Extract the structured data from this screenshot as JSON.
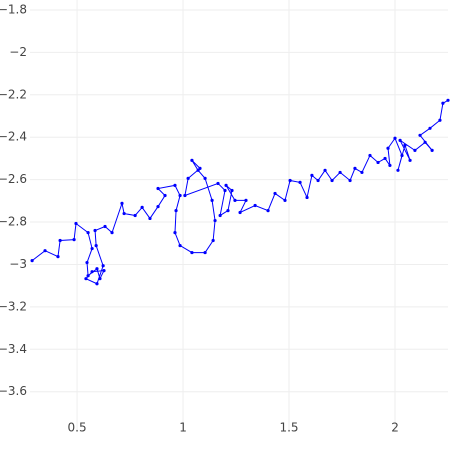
{
  "chart_data": {
    "type": "line",
    "color": "#0000ff",
    "grid": true,
    "markers": true,
    "xlim": [
      0.278,
      2.25
    ],
    "ylim": [
      -3.79,
      -1.753
    ],
    "xticks": [
      0.5,
      1,
      1.5,
      2
    ],
    "yticks": [
      {
        "value": -1.8,
        "label": "−1.8"
      },
      {
        "value": -2,
        "label": "−2"
      },
      {
        "value": -2.2,
        "label": "−2.2"
      },
      {
        "value": -2.4,
        "label": "−2.4"
      },
      {
        "value": -2.6,
        "label": "−2.6"
      },
      {
        "value": -2.8,
        "label": "−2.8"
      },
      {
        "value": -3,
        "label": "−3"
      },
      {
        "value": -3.2,
        "label": "−3.2"
      },
      {
        "value": -3.4,
        "label": "−3.4"
      },
      {
        "value": -3.6,
        "label": "−3.6"
      }
    ],
    "x": [
      0.288,
      0.349,
      0.41,
      0.42,
      0.486,
      0.495,
      0.552,
      0.571,
      0.547,
      0.552,
      0.594,
      0.608,
      0.627,
      0.571,
      0.542,
      0.594,
      0.623,
      0.59,
      0.585,
      0.632,
      0.665,
      0.712,
      0.722,
      0.774,
      0.807,
      0.844,
      0.882,
      0.915,
      0.882,
      0.962,
      0.986,
      0.967,
      0.962,
      0.986,
      1.042,
      1.104,
      1.142,
      1.151,
      1.137,
      1.104,
      1.071,
      1.042,
      1.08,
      1.024,
      1.009,
      1.165,
      1.198,
      1.175,
      1.212,
      1.231,
      1.203,
      1.245,
      1.297,
      1.269,
      1.34,
      1.401,
      1.434,
      1.481,
      1.505,
      1.552,
      1.585,
      1.608,
      1.637,
      1.67,
      1.703,
      1.741,
      1.788,
      1.811,
      1.844,
      1.882,
      1.92,
      1.953,
      1.976,
      1.967,
      2.0,
      2.033,
      2.014,
      2.047,
      2.071,
      2.024,
      2.094,
      2.142,
      2.175,
      2.118,
      2.165,
      2.212,
      2.226,
      2.25
    ],
    "values": [
      -2.982,
      -2.935,
      -2.963,
      -2.887,
      -2.883,
      -2.807,
      -2.85,
      -2.925,
      -2.991,
      -3.053,
      -3.02,
      -3.067,
      -3.029,
      -3.034,
      -3.067,
      -3.091,
      -3.006,
      -2.911,
      -2.84,
      -2.821,
      -2.85,
      -2.712,
      -2.76,
      -2.769,
      -2.731,
      -2.783,
      -2.727,
      -2.675,
      -2.642,
      -2.627,
      -2.675,
      -2.746,
      -2.85,
      -2.911,
      -2.944,
      -2.944,
      -2.887,
      -2.793,
      -2.698,
      -2.594,
      -2.556,
      -2.509,
      -2.547,
      -2.594,
      -2.675,
      -2.618,
      -2.651,
      -2.769,
      -2.746,
      -2.651,
      -2.627,
      -2.698,
      -2.698,
      -2.755,
      -2.722,
      -2.746,
      -2.665,
      -2.698,
      -2.604,
      -2.613,
      -2.684,
      -2.58,
      -2.604,
      -2.556,
      -2.604,
      -2.566,
      -2.604,
      -2.547,
      -2.566,
      -2.486,
      -2.519,
      -2.5,
      -2.533,
      -2.452,
      -2.405,
      -2.486,
      -2.556,
      -2.438,
      -2.509,
      -2.415,
      -2.462,
      -2.424,
      -2.462,
      -2.391,
      -2.358,
      -2.32,
      -2.24,
      -2.226
    ]
  }
}
